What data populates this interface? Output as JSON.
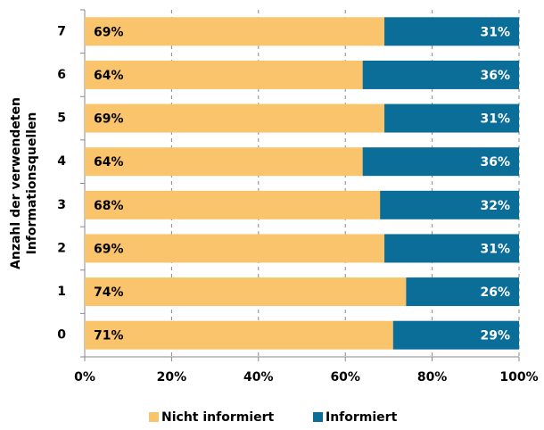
{
  "chart_data": {
    "type": "stacked_bar_horizontal",
    "ylabel": [
      "Anzahl der verwendeten",
      "Informationsquellen"
    ],
    "categories": [
      "7",
      "6",
      "5",
      "4",
      "3",
      "2",
      "1",
      "0"
    ],
    "series": [
      {
        "name": "Nicht informiert",
        "color": "#f9c46b",
        "values": [
          69,
          64,
          69,
          64,
          68,
          69,
          74,
          71
        ],
        "value_labels": [
          "69%",
          "64%",
          "69%",
          "64%",
          "68%",
          "69%",
          "74%",
          "71%"
        ]
      },
      {
        "name": "Informiert",
        "color": "#0b6e99",
        "values": [
          31,
          36,
          31,
          36,
          32,
          31,
          26,
          29
        ],
        "value_labels": [
          "31%",
          "36%",
          "31%",
          "36%",
          "32%",
          "31%",
          "26%",
          "29%"
        ]
      }
    ],
    "xlim": [
      0,
      100
    ],
    "xticks": [
      {
        "value": 0,
        "label": "0%"
      },
      {
        "value": 20,
        "label": "20%"
      },
      {
        "value": 40,
        "label": "40%"
      },
      {
        "value": 60,
        "label": "60%"
      },
      {
        "value": 80,
        "label": "80%"
      },
      {
        "value": 100,
        "label": "100%"
      }
    ],
    "grid": true,
    "legend": "bottom"
  }
}
